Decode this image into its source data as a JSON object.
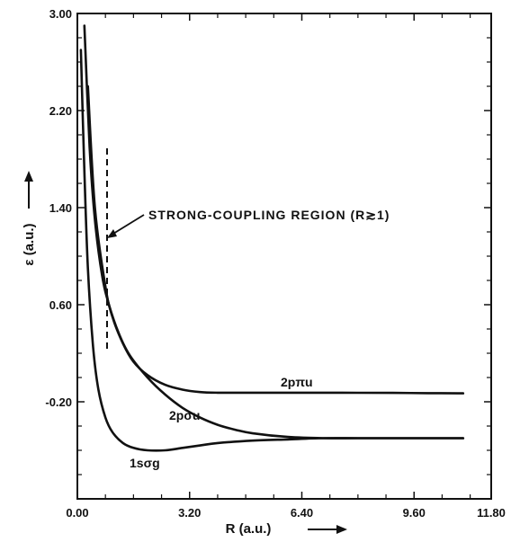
{
  "chart_data": {
    "type": "line",
    "title": "",
    "xlabel": "R (a.u.)",
    "ylabel": "ε (a.u.)",
    "xlim": [
      0.0,
      11.8
    ],
    "ylim": [
      -1.0,
      3.0
    ],
    "x_ticks": [
      "0.00",
      "3.20",
      "6.40",
      "9.60",
      "11.80"
    ],
    "x_tick_values": [
      0.0,
      3.2,
      6.4,
      9.6,
      11.8
    ],
    "y_ticks": [
      "3.00",
      "2.20",
      "1.40",
      "0.60",
      "-0.20"
    ],
    "y_tick_values": [
      3.0,
      2.2,
      1.4,
      0.6,
      -0.2
    ],
    "grid": false,
    "legend": "none",
    "series": [
      {
        "name": "2pπu",
        "x": [
          0.3,
          0.5,
          0.8,
          1.0,
          1.3,
          1.6,
          2.0,
          2.5,
          3.0,
          3.5,
          4.0,
          5.0,
          6.0,
          7.0,
          8.0,
          9.0,
          10.0,
          11.0
        ],
        "values": [
          2.4,
          1.4,
          0.75,
          0.5,
          0.28,
          0.13,
          0.02,
          -0.06,
          -0.1,
          -0.12,
          -0.125,
          -0.125,
          -0.125,
          -0.125,
          -0.126,
          -0.127,
          -0.129,
          -0.13
        ]
      },
      {
        "name": "2pσu",
        "x": [
          0.2,
          0.35,
          0.5,
          0.7,
          0.9,
          1.2,
          1.5,
          2.0,
          2.5,
          3.0,
          3.5,
          4.0,
          4.5,
          5.0,
          6.0,
          7.0,
          8.0,
          9.0,
          10.0,
          11.0
        ],
        "values": [
          2.9,
          1.9,
          1.3,
          0.85,
          0.6,
          0.35,
          0.18,
          0.0,
          -0.14,
          -0.25,
          -0.33,
          -0.39,
          -0.43,
          -0.46,
          -0.49,
          -0.5,
          -0.5,
          -0.5,
          -0.5,
          -0.5
        ]
      },
      {
        "name": "1sσg",
        "x": [
          0.1,
          0.2,
          0.3,
          0.45,
          0.6,
          0.8,
          1.0,
          1.3,
          1.6,
          2.0,
          2.5,
          3.0,
          3.5,
          4.0,
          5.0,
          6.0,
          7.0,
          8.0,
          9.0,
          10.0,
          11.0
        ],
        "values": [
          2.7,
          1.7,
          0.9,
          0.25,
          -0.1,
          -0.33,
          -0.45,
          -0.54,
          -0.58,
          -0.6,
          -0.6,
          -0.58,
          -0.56,
          -0.54,
          -0.52,
          -0.51,
          -0.5,
          -0.5,
          -0.5,
          -0.5,
          -0.5
        ]
      }
    ],
    "annotations": [
      {
        "text": "STRONG-COUPLING REGION (R≳1)",
        "points_to_x": 1.0,
        "points_to_y": 1.05
      }
    ]
  }
}
